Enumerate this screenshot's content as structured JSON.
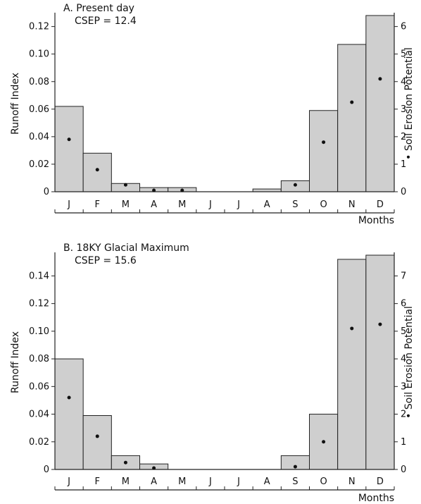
{
  "chart_data": [
    {
      "type": "bar",
      "title": "A. Present day",
      "subtitle": "CSEP = 12.4",
      "categories": [
        "J",
        "F",
        "M",
        "A",
        "M",
        "J",
        "J",
        "A",
        "S",
        "O",
        "N",
        "D"
      ],
      "xlabel": "Months",
      "ylabel": "Runoff Index",
      "y2label": "Soil Erosion Potential",
      "ylim": [
        0,
        0.128
      ],
      "yticks": [
        0,
        0.02,
        0.04,
        0.06,
        0.08,
        0.1,
        0.12
      ],
      "ytick_labels": [
        "0",
        "0.02",
        "0.04",
        "0.06",
        "0.08",
        "0.10",
        "0.12"
      ],
      "y2lim": [
        0,
        6.4
      ],
      "y2ticks": [
        0,
        1,
        2,
        3,
        4,
        5,
        6
      ],
      "y2tick_labels": [
        "0",
        "1",
        "2",
        "3",
        "4",
        "5",
        "6"
      ],
      "series": [
        {
          "values": [
            0.062,
            0.028,
            0.006,
            0.003,
            0.003,
            0,
            0,
            0.002,
            0.008,
            0.059,
            0.107,
            0.128
          ]
        },
        {
          "axis": "right",
          "values": [
            1.9,
            0.8,
            0.25,
            0.05,
            0.05,
            null,
            null,
            null,
            0.25,
            1.8,
            3.25,
            4.1
          ]
        }
      ]
    },
    {
      "type": "bar",
      "title": "B. 18KY Glacial Maximum",
      "subtitle": "CSEP = 15.6",
      "categories": [
        "J",
        "F",
        "M",
        "A",
        "M",
        "J",
        "J",
        "A",
        "S",
        "O",
        "N",
        "D"
      ],
      "xlabel": "Months",
      "ylabel": "Runoff Index",
      "y2label": "Soil Erosion Potential",
      "ylim": [
        0,
        0.155
      ],
      "yticks": [
        0,
        0.02,
        0.04,
        0.06,
        0.08,
        0.1,
        0.12,
        0.14
      ],
      "ytick_labels": [
        "0",
        "0.02",
        "0.04",
        "0.06",
        "0.08",
        "0.10",
        "0.12",
        "0.14"
      ],
      "y2lim": [
        0,
        7.75
      ],
      "y2ticks": [
        0,
        1,
        2,
        3,
        4,
        5,
        6,
        7
      ],
      "y2tick_labels": [
        "0",
        "1",
        "2",
        "3",
        "4",
        "5",
        "6",
        "7"
      ],
      "series": [
        {
          "values": [
            0.08,
            0.039,
            0.01,
            0.004,
            0,
            0,
            0,
            0,
            0.01,
            0.04,
            0.152,
            0.155
          ]
        },
        {
          "axis": "right",
          "values": [
            2.6,
            1.2,
            0.25,
            0.05,
            null,
            null,
            null,
            null,
            0.1,
            1.0,
            5.1,
            5.25
          ]
        }
      ]
    }
  ]
}
